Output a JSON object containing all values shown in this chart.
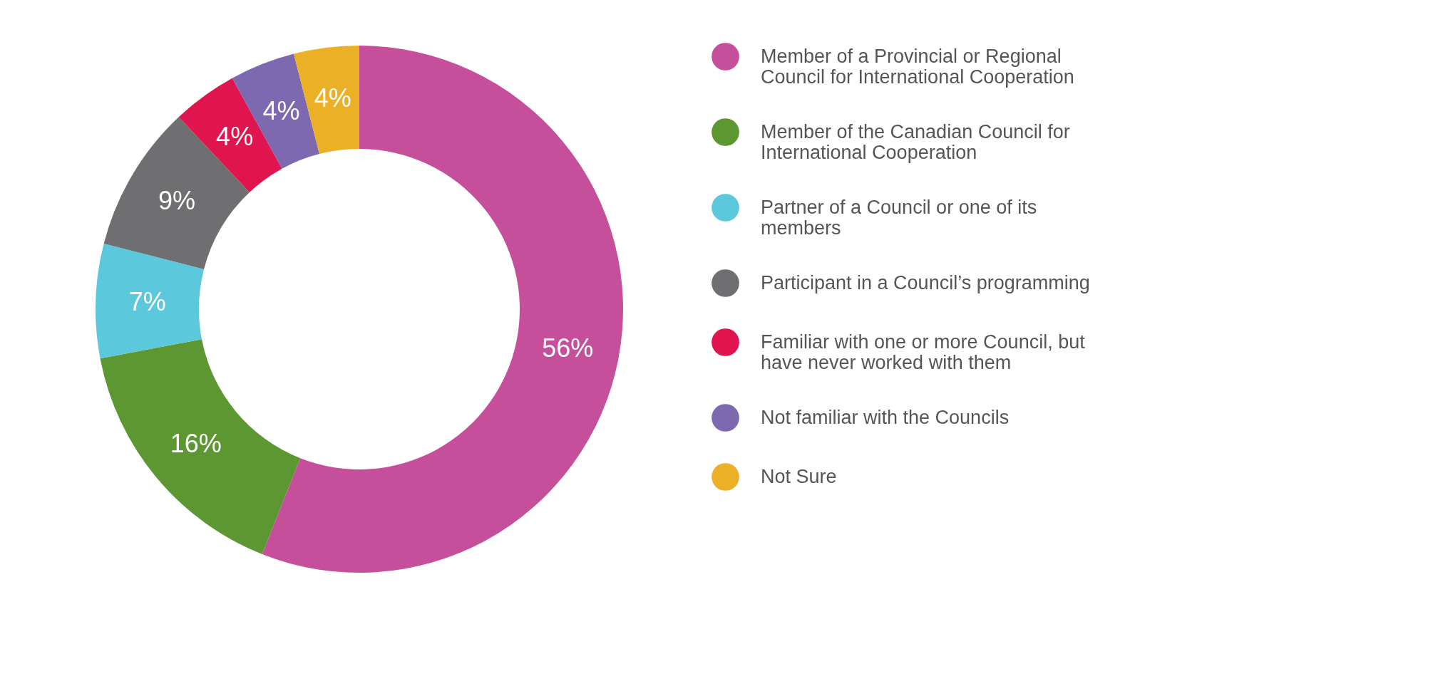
{
  "chart_data": {
    "type": "donut",
    "categories": [
      "Member of a Provincial or Regional Council for International Cooperation",
      "Member of the Canadian Council for International Cooperation",
      "Partner of a Council or one of its members",
      "Participant in a Council’s programming",
      "Familiar with one or more Council, but have never worked with them",
      "Not familiar with the Councils",
      "Not Sure"
    ],
    "values": [
      56,
      16,
      7,
      9,
      4,
      4,
      4
    ],
    "value_labels": [
      "56%",
      "16%",
      "7%",
      "9%",
      "4%",
      "4%",
      "4%"
    ],
    "colors": [
      "#c54f9b",
      "#5c9732",
      "#5bc8dc",
      "#6f6f72",
      "#e0144f",
      "#7d69b0",
      "#ecb026"
    ],
    "legend": "right"
  }
}
